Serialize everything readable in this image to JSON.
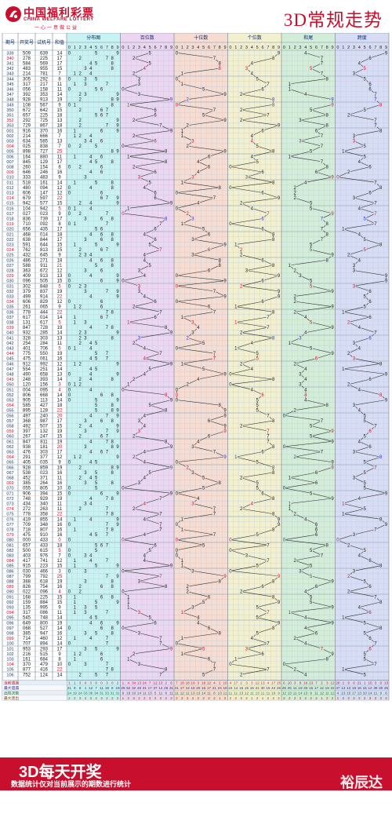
{
  "header": {
    "logo_cn": "中国福利彩票",
    "logo_en": "CHINA WELFARE LOTTERY",
    "logo_slogan": "一心一意做公益",
    "title": "3D常规走势"
  },
  "footer": {
    "title": "3D每天开奖",
    "note": "数据统计仅对当前展示的期数进行统计",
    "brand": "裕辰达"
  },
  "colors": {
    "red": "#c8102e",
    "blue": "#2233cc",
    "dist_bg": "#c9f2f2",
    "hundreds_bg": "#ecd6f2",
    "tens_bg": "#f7dcd2",
    "units_bg": "#f3f0d0",
    "sum_bg": "#d4edd8",
    "span_bg": "#d8ddf5"
  },
  "chart_data": {
    "type": "table",
    "columns": {
      "issue": "期号",
      "draw": "开奖号",
      "trial": "试机号",
      "sum": "和值",
      "distribution": "分布图",
      "hundreds": "百位数",
      "tens": "十位数",
      "units": "个位数",
      "sum_tail": "和尾",
      "span": "跨度"
    },
    "digits": [
      "0",
      "1",
      "2",
      "3",
      "4",
      "5",
      "6",
      "7",
      "8",
      "9"
    ],
    "stats_labels": [
      "当前遗漏",
      "最大遗漏",
      "出现次数",
      "最大连出"
    ],
    "stats": {
      "current_omission": [
        1,
        1,
        3,
        0,
        3,
        8,
        0,
        3,
        0,
        2,
        1,
        4,
        34,
        13,
        24,
        7,
        12,
        13,
        2,
        6,
        7,
        18,
        18,
        19,
        3,
        19,
        12,
        4,
        2,
        10,
        4,
        17,
        2,
        3,
        3,
        12,
        13,
        4,
        17,
        15,
        6,
        10,
        3,
        8,
        16,
        13,
        7,
        2,
        3,
        12,
        28,
        2,
        9,
        6,
        21,
        1,
        15,
        3,
        9,
        13
      ],
      "max_omission": [
        21,
        9,
        8,
        1,
        12,
        7,
        11,
        19,
        8,
        19,
        29,
        52,
        32,
        48,
        31,
        17,
        37,
        14,
        26,
        31,
        21,
        17,
        13,
        18,
        20,
        16,
        17,
        21,
        24,
        19,
        24,
        14,
        15,
        15,
        16,
        21,
        30,
        15,
        42,
        26,
        26,
        25,
        11,
        19,
        33,
        15,
        17,
        12,
        16,
        22,
        47,
        14,
        13,
        18,
        16,
        15,
        12,
        39,
        30,
        26
      ],
      "hit_count": [
        24,
        19,
        24,
        33,
        36,
        34,
        31,
        33,
        31,
        31,
        9,
        18,
        10,
        14,
        11,
        13,
        5,
        11,
        8,
        11,
        11,
        12,
        11,
        13,
        13,
        14,
        11,
        8,
        13,
        11,
        11,
        11,
        13,
        12,
        11,
        13,
        11,
        11,
        10,
        9,
        12,
        13,
        11,
        14,
        13,
        9,
        11,
        12,
        11,
        12,
        4,
        13,
        15,
        17,
        13,
        10,
        14,
        11,
        9,
        6
      ],
      "max_streak": [
        2,
        2,
        3,
        2,
        3,
        2,
        3,
        2,
        2,
        2,
        1,
        2,
        3,
        2,
        2,
        3,
        2,
        2,
        2,
        2,
        2,
        2,
        2,
        2,
        2,
        2,
        2,
        2,
        1,
        2,
        2,
        2,
        3,
        2,
        1,
        2,
        1,
        2,
        2,
        2,
        2,
        2,
        2,
        2,
        2,
        2,
        2,
        1,
        2,
        2,
        1,
        2,
        2,
        2,
        2,
        2,
        3,
        3,
        2,
        2
      ]
    },
    "rows": [
      {
        "issue": "339",
        "draw": "509",
        "trial": "639",
        "sum": "14"
      },
      {
        "issue": "340",
        "draw": "278",
        "trial": "225",
        "sum": "17"
      },
      {
        "issue": "341",
        "draw": "584",
        "trial": "569",
        "sum": "17"
      },
      {
        "issue": "342",
        "draw": "483",
        "trial": "955",
        "sum": "15"
      },
      {
        "issue": "343",
        "draw": "214",
        "trial": "781",
        "sum": "7"
      },
      {
        "issue": "344",
        "draw": "305",
        "trial": "292",
        "sum": "8"
      },
      {
        "issue": "345",
        "draw": "317",
        "trial": "217",
        "sum": "11"
      },
      {
        "issue": "346",
        "draw": "056",
        "trial": "158",
        "sum": "11"
      },
      {
        "issue": "347",
        "draw": "392",
        "trial": "353",
        "sum": "14"
      },
      {
        "issue": "348",
        "draw": "928",
        "trial": "913",
        "sum": "19"
      },
      {
        "issue": "349",
        "draw": "108",
        "trial": "567",
        "sum": "9"
      },
      {
        "issue": "350",
        "draw": "672",
        "trial": "642",
        "sum": "15"
      },
      {
        "issue": "351",
        "draw": "657",
        "trial": "225",
        "sum": "18"
      },
      {
        "issue": "352",
        "draw": "292",
        "trial": "725",
        "sum": "13"
      },
      {
        "issue": "353",
        "draw": "729",
        "trial": "867",
        "sum": "18"
      },
      {
        "issue": "001",
        "draw": "916",
        "trial": "370",
        "sum": "16"
      },
      {
        "issue": "002",
        "draw": "214",
        "trial": "666",
        "sum": "7"
      },
      {
        "issue": "003",
        "draw": "634",
        "trial": "585",
        "sum": "13"
      },
      {
        "issue": "004",
        "draw": "025",
        "trial": "838",
        "sum": "7"
      },
      {
        "issue": "005",
        "draw": "898",
        "trial": "727",
        "sum": "25"
      },
      {
        "issue": "006",
        "draw": "164",
        "trial": "880",
        "sum": "11"
      },
      {
        "issue": "007",
        "draw": "845",
        "trial": "129",
        "sum": "17"
      },
      {
        "issue": "008",
        "draw": "260",
        "trial": "154",
        "sum": "8"
      },
      {
        "issue": "009",
        "draw": "646",
        "trial": "246",
        "sum": "16"
      },
      {
        "issue": "010",
        "draw": "333",
        "trial": "483",
        "sum": "9"
      },
      {
        "issue": "011",
        "draw": "518",
        "trial": "161",
        "sum": "14"
      },
      {
        "issue": "012",
        "draw": "480",
        "trial": "094",
        "sum": "12"
      },
      {
        "issue": "013",
        "draw": "606",
        "trial": "147",
        "sum": "12"
      },
      {
        "issue": "014",
        "draw": "679",
        "trial": "597",
        "sum": "22"
      },
      {
        "issue": "015",
        "draw": "942",
        "trial": "577",
        "sum": "15"
      },
      {
        "issue": "016",
        "draw": "104",
        "trial": "942",
        "sum": "5"
      },
      {
        "issue": "017",
        "draw": "027",
        "trial": "023",
        "sum": "9"
      },
      {
        "issue": "018",
        "draw": "836",
        "trial": "739",
        "sum": "17"
      },
      {
        "issue": "019",
        "draw": "710",
        "trial": "092",
        "sum": "8"
      },
      {
        "issue": "020",
        "draw": "656",
        "trial": "435",
        "sum": "17"
      },
      {
        "issue": "021",
        "draw": "468",
        "trial": "014",
        "sum": "18"
      },
      {
        "issue": "022",
        "draw": "638",
        "trial": "844",
        "sum": "17"
      },
      {
        "issue": "023",
        "draw": "591",
        "trial": "644",
        "sum": "15"
      },
      {
        "issue": "024",
        "draw": "762",
        "trial": "813",
        "sum": "15"
      },
      {
        "issue": "025",
        "draw": "432",
        "trial": "645",
        "sum": "9"
      },
      {
        "issue": "026",
        "draw": "486",
        "trial": "271",
        "sum": "18"
      },
      {
        "issue": "027",
        "draw": "588",
        "trial": "911",
        "sum": "21"
      },
      {
        "issue": "028",
        "draw": "363",
        "trial": "672",
        "sum": "12"
      },
      {
        "issue": "029",
        "draw": "409",
        "trial": "913",
        "sum": "13"
      },
      {
        "issue": "030",
        "draw": "096",
        "trial": "505",
        "sum": "15"
      },
      {
        "issue": "031",
        "draw": "302",
        "trial": "848",
        "sum": "5"
      },
      {
        "issue": "032",
        "draw": "379",
        "trial": "837",
        "sum": "19"
      },
      {
        "issue": "033",
        "draw": "499",
        "trial": "914",
        "sum": "22"
      },
      {
        "issue": "034",
        "draw": "606",
        "trial": "829",
        "sum": "12"
      },
      {
        "issue": "035",
        "draw": "261",
        "trial": "065",
        "sum": "9"
      },
      {
        "issue": "036",
        "draw": "778",
        "trial": "444",
        "sum": "22"
      },
      {
        "issue": "037",
        "draw": "617",
        "trial": "014",
        "sum": "14"
      },
      {
        "issue": "038",
        "draw": "131",
        "trial": "617",
        "sum": "5"
      },
      {
        "issue": "039",
        "draw": "847",
        "trial": "728",
        "sum": "19"
      },
      {
        "issue": "040",
        "draw": "932",
        "trial": "285",
        "sum": "14"
      },
      {
        "issue": "041",
        "draw": "328",
        "trial": "303",
        "sum": "13"
      },
      {
        "issue": "042",
        "draw": "254",
        "trial": "284",
        "sum": "11"
      },
      {
        "issue": "043",
        "draw": "401",
        "trial": "706",
        "sum": "5"
      },
      {
        "issue": "044",
        "draw": "775",
        "trial": "550",
        "sum": "19"
      },
      {
        "issue": "045",
        "draw": "475",
        "trial": "061",
        "sum": "16"
      },
      {
        "issue": "046",
        "draw": "912",
        "trial": "992",
        "sum": "12"
      },
      {
        "issue": "047",
        "draw": "554",
        "trial": "251",
        "sum": "14"
      },
      {
        "issue": "048",
        "draw": "490",
        "trial": "658",
        "sum": "13"
      },
      {
        "issue": "049",
        "draw": "248",
        "trial": "393",
        "sum": "14"
      },
      {
        "issue": "050",
        "draw": "120",
        "trial": "156",
        "sum": "3"
      },
      {
        "issue": "051",
        "draw": "004",
        "trial": "095",
        "sum": "4"
      },
      {
        "issue": "052",
        "draw": "806",
        "trial": "668",
        "sum": "14"
      },
      {
        "issue": "053",
        "draw": "905",
        "trial": "113",
        "sum": "14"
      },
      {
        "issue": "054",
        "draw": "585",
        "trial": "427",
        "sum": "18"
      },
      {
        "issue": "055",
        "draw": "895",
        "trial": "128",
        "sum": "22"
      },
      {
        "issue": "056",
        "draw": "497",
        "trial": "240",
        "sum": "20"
      },
      {
        "issue": "057",
        "draw": "368",
        "trial": "987",
        "sum": "17"
      },
      {
        "issue": "058",
        "draw": "492",
        "trial": "507",
        "sum": "15"
      },
      {
        "issue": "059",
        "draw": "397",
        "trial": "132",
        "sum": "19"
      },
      {
        "issue": "060",
        "draw": "267",
        "trial": "247",
        "sum": "15"
      },
      {
        "issue": "061",
        "draw": "847",
        "trial": "811",
        "sum": "19"
      },
      {
        "issue": "062",
        "draw": "938",
        "trial": "181",
        "sum": "20"
      },
      {
        "issue": "063",
        "draw": "476",
        "trial": "303",
        "sum": "17"
      },
      {
        "issue": "064",
        "draw": "291",
        "trial": "377",
        "sum": "12"
      },
      {
        "issue": "065",
        "draw": "405",
        "trial": "035",
        "sum": "9"
      },
      {
        "issue": "066",
        "draw": "928",
        "trial": "859",
        "sum": "19"
      },
      {
        "issue": "067",
        "draw": "538",
        "trial": "023",
        "sum": "16"
      },
      {
        "issue": "068",
        "draw": "452",
        "trial": "371",
        "sum": "11"
      },
      {
        "issue": "069",
        "draw": "385",
        "trial": "264",
        "sum": "16"
      },
      {
        "issue": "070",
        "draw": "055",
        "trial": "805",
        "sum": "10"
      },
      {
        "issue": "071",
        "draw": "906",
        "trial": "394",
        "sum": "15"
      },
      {
        "issue": "072",
        "draw": "748",
        "trial": "929",
        "sum": "19"
      },
      {
        "issue": "073",
        "draw": "434",
        "trial": "340",
        "sum": "11"
      },
      {
        "issue": "074",
        "draw": "272",
        "trial": "263",
        "sum": "11"
      },
      {
        "issue": "075",
        "draw": "778",
        "trial": "358",
        "sum": "22"
      },
      {
        "issue": "076",
        "draw": "419",
        "trial": "855",
        "sum": "14"
      },
      {
        "issue": "077",
        "draw": "709",
        "trial": "348",
        "sum": "16"
      },
      {
        "issue": "078",
        "draw": "718",
        "trial": "807",
        "sum": "16"
      },
      {
        "issue": "079",
        "draw": "475",
        "trial": "910",
        "sum": "16"
      },
      {
        "issue": "080",
        "draw": "000",
        "trial": "433",
        "sum": "0"
      },
      {
        "issue": "081",
        "draw": "657",
        "trial": "433",
        "sum": "18"
      },
      {
        "issue": "082",
        "draw": "500",
        "trial": "615",
        "sum": "5"
      },
      {
        "issue": "083",
        "draw": "403",
        "trial": "976",
        "sum": "7"
      },
      {
        "issue": "084",
        "draw": "417",
        "trial": "741",
        "sum": "12"
      },
      {
        "issue": "085",
        "draw": "915",
        "trial": "223",
        "sum": "15"
      },
      {
        "issue": "086",
        "draw": "030",
        "trial": "466",
        "sum": "3"
      },
      {
        "issue": "087",
        "draw": "799",
        "trial": "792",
        "sum": "25"
      },
      {
        "issue": "088",
        "draw": "388",
        "trial": "618",
        "sum": "19"
      },
      {
        "issue": "089",
        "draw": "826",
        "trial": "754",
        "sum": "16"
      },
      {
        "issue": "090",
        "draw": "022",
        "trial": "096",
        "sum": "4"
      },
      {
        "issue": "091",
        "draw": "168",
        "trial": "225",
        "sum": "15"
      },
      {
        "issue": "092",
        "draw": "159",
        "trial": "884",
        "sum": "15"
      },
      {
        "issue": "093",
        "draw": "135",
        "trial": "995",
        "sum": "9"
      },
      {
        "issue": "094",
        "draw": "317",
        "trial": "086",
        "sum": "11"
      },
      {
        "issue": "095",
        "draw": "545",
        "trial": "748",
        "sum": "14"
      },
      {
        "issue": "096",
        "draw": "649",
        "trial": "800",
        "sum": "19"
      },
      {
        "issue": "097",
        "draw": "068",
        "trial": "527",
        "sum": "14"
      },
      {
        "issue": "098",
        "draw": "385",
        "trial": "947",
        "sum": "16"
      },
      {
        "issue": "099",
        "draw": "714",
        "trial": "460",
        "sum": "12"
      },
      {
        "issue": "100",
        "draw": "707",
        "trial": "894",
        "sum": "14"
      },
      {
        "issue": "101",
        "draw": "953",
        "trial": "293",
        "sum": "17"
      },
      {
        "issue": "102",
        "draw": "216",
        "trial": "515",
        "sum": "9"
      },
      {
        "issue": "103",
        "draw": "161",
        "trial": "684",
        "sum": "8"
      },
      {
        "issue": "104",
        "draw": "370",
        "trial": "479",
        "sum": "10"
      },
      {
        "issue": "105",
        "draw": "877",
        "trial": "416",
        "sum": "22"
      },
      {
        "issue": "106",
        "draw": "752",
        "trial": "124",
        "sum": "14"
      }
    ]
  }
}
